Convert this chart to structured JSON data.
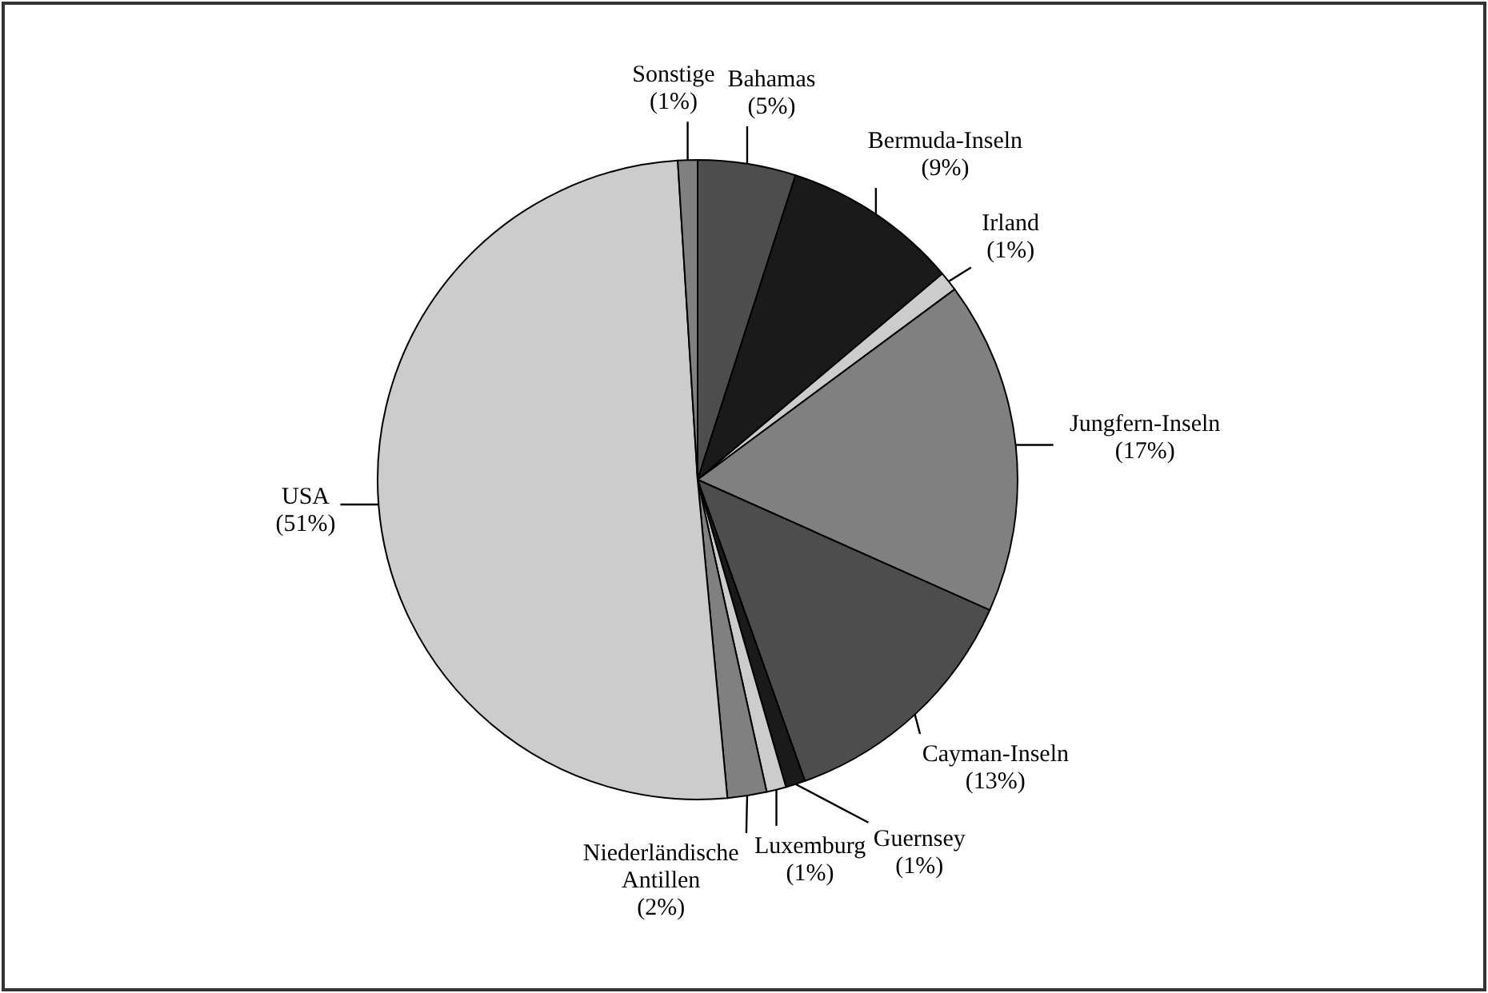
{
  "chart_data": {
    "type": "pie",
    "categories": [
      "Bahamas",
      "Bermuda-Inseln",
      "Irland",
      "Jungfern-Inseln",
      "Cayman-Inseln",
      "Guernsey",
      "Luxemburg",
      "Niederländische Antillen",
      "USA",
      "Sonstige"
    ],
    "values": [
      5,
      9,
      1,
      17,
      13,
      1,
      1,
      2,
      51,
      1
    ],
    "colors": [
      "#4d4d4d",
      "#1a1a1a",
      "#cccccc",
      "#808080",
      "#4d4d4d",
      "#1a1a1a",
      "#cccccc",
      "#808080",
      "#cccccc",
      "#808080"
    ],
    "value_labels": [
      "(5%)",
      "(9%)",
      "(1%)",
      "(17%)",
      "(13%)",
      "(1%)",
      "(1%)",
      "(2%)",
      "(51%)",
      "(1%)"
    ]
  }
}
